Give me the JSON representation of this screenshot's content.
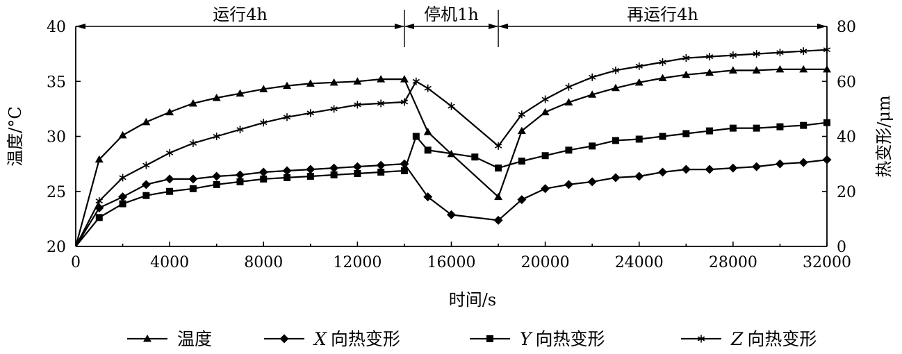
{
  "chart_data": {
    "type": "line",
    "title": "",
    "xlabel": "时间/s",
    "ylabel_left": "温度/°C",
    "ylabel_right": "热变形/μm",
    "xlim": [
      0,
      32000
    ],
    "ylim_left": [
      20,
      40
    ],
    "ylim_right": [
      0,
      80
    ],
    "x_ticks": [
      "0",
      "4000",
      "8000",
      "12000",
      "16000",
      "20000",
      "24000",
      "28000",
      "32000"
    ],
    "y_left_ticks": [
      "20",
      "25",
      "30",
      "35",
      "40"
    ],
    "y_right_ticks": [
      "0",
      "20",
      "40",
      "60",
      "80"
    ],
    "grid": false,
    "legend_position": "bottom",
    "phases": [
      {
        "label": "运行4h",
        "start": 0,
        "end": 14000
      },
      {
        "label": "停机1h",
        "start": 14000,
        "end": 18000
      },
      {
        "label": "再运行4h",
        "start": 18000,
        "end": 32000
      }
    ],
    "series": [
      {
        "name": "温度",
        "legend_prefix": "",
        "legend_suffix": "温度",
        "axis": "left",
        "marker": "triangle",
        "points": [
          [
            0,
            20
          ],
          [
            1000,
            27.9
          ],
          [
            2000,
            30.1
          ],
          [
            3000,
            31.3
          ],
          [
            4000,
            32.2
          ],
          [
            5000,
            33
          ],
          [
            6000,
            33.5
          ],
          [
            7000,
            33.9
          ],
          [
            8000,
            34.3
          ],
          [
            9000,
            34.6
          ],
          [
            10000,
            34.8
          ],
          [
            11000,
            34.9
          ],
          [
            12000,
            35
          ],
          [
            13000,
            35.2
          ],
          [
            14000,
            35.2
          ],
          [
            15000,
            30.4
          ],
          [
            16000,
            28.4
          ],
          [
            18000,
            24.5
          ],
          [
            19000,
            30.5
          ],
          [
            20000,
            32.2
          ],
          [
            21000,
            33.1
          ],
          [
            22000,
            33.8
          ],
          [
            23000,
            34.4
          ],
          [
            24000,
            34.9
          ],
          [
            25000,
            35.3
          ],
          [
            26000,
            35.6
          ],
          [
            27000,
            35.8
          ],
          [
            28000,
            36
          ],
          [
            29000,
            36
          ],
          [
            30000,
            36.1
          ],
          [
            31000,
            36.1
          ],
          [
            32000,
            36.1
          ]
        ]
      },
      {
        "name": "X向热变形",
        "legend_prefix": "X",
        "legend_suffix": "向热变形",
        "axis": "right",
        "marker": "diamond",
        "points": [
          [
            0,
            0
          ],
          [
            1000,
            14
          ],
          [
            2000,
            18
          ],
          [
            3000,
            22.5
          ],
          [
            4000,
            24.5
          ],
          [
            5000,
            24.5
          ],
          [
            6000,
            25.5
          ],
          [
            7000,
            26
          ],
          [
            8000,
            27
          ],
          [
            9000,
            27.5
          ],
          [
            10000,
            28
          ],
          [
            11000,
            28.5
          ],
          [
            12000,
            29
          ],
          [
            13000,
            29.5
          ],
          [
            14000,
            30
          ],
          [
            15000,
            18
          ],
          [
            16000,
            11.5
          ],
          [
            18000,
            9.5
          ],
          [
            19000,
            17
          ],
          [
            20000,
            21
          ],
          [
            21000,
            22.5
          ],
          [
            22000,
            23.5
          ],
          [
            23000,
            25
          ],
          [
            24000,
            25.5
          ],
          [
            25000,
            27
          ],
          [
            26000,
            28
          ],
          [
            27000,
            28
          ],
          [
            28000,
            28.5
          ],
          [
            29000,
            29
          ],
          [
            30000,
            30
          ],
          [
            31000,
            30.5
          ],
          [
            32000,
            31.5
          ]
        ]
      },
      {
        "name": "Y向热变形",
        "legend_prefix": "Y",
        "legend_suffix": "向热变形",
        "axis": "right",
        "marker": "square",
        "points": [
          [
            0,
            0
          ],
          [
            1000,
            10.5
          ],
          [
            2000,
            15.5
          ],
          [
            3000,
            18.5
          ],
          [
            4000,
            20
          ],
          [
            5000,
            21
          ],
          [
            6000,
            22.5
          ],
          [
            7000,
            23.5
          ],
          [
            8000,
            24.5
          ],
          [
            9000,
            25
          ],
          [
            10000,
            25.5
          ],
          [
            11000,
            26
          ],
          [
            12000,
            26.5
          ],
          [
            13000,
            27
          ],
          [
            14000,
            27.5
          ],
          [
            14500,
            40
          ],
          [
            15000,
            35
          ],
          [
            17000,
            32.5
          ],
          [
            18000,
            28.5
          ],
          [
            19000,
            31
          ],
          [
            20000,
            33
          ],
          [
            21000,
            35
          ],
          [
            22000,
            36.5
          ],
          [
            23000,
            38.5
          ],
          [
            24000,
            39
          ],
          [
            25000,
            40
          ],
          [
            26000,
            41
          ],
          [
            27000,
            42
          ],
          [
            28000,
            43
          ],
          [
            29000,
            43
          ],
          [
            30000,
            43.5
          ],
          [
            31000,
            44
          ],
          [
            32000,
            45
          ]
        ]
      },
      {
        "name": "Z向热变形",
        "legend_prefix": "Z",
        "legend_suffix": "向热变形",
        "axis": "right",
        "marker": "star",
        "points": [
          [
            0,
            0
          ],
          [
            1000,
            16.5
          ],
          [
            2000,
            25
          ],
          [
            3000,
            29.5
          ],
          [
            4000,
            34
          ],
          [
            5000,
            37.5
          ],
          [
            6000,
            40
          ],
          [
            7000,
            42.5
          ],
          [
            8000,
            45
          ],
          [
            9000,
            47
          ],
          [
            10000,
            48.5
          ],
          [
            11000,
            50
          ],
          [
            12000,
            51.5
          ],
          [
            13000,
            52
          ],
          [
            14000,
            52.5
          ],
          [
            14500,
            60
          ],
          [
            15000,
            57.5
          ],
          [
            16000,
            51
          ],
          [
            18000,
            36.5
          ],
          [
            19000,
            48
          ],
          [
            20000,
            53.5
          ],
          [
            21000,
            58
          ],
          [
            22000,
            61.5
          ],
          [
            23000,
            64
          ],
          [
            24000,
            65.5
          ],
          [
            25000,
            67
          ],
          [
            26000,
            68.5
          ],
          [
            27000,
            69
          ],
          [
            28000,
            69.5
          ],
          [
            29000,
            70
          ],
          [
            30000,
            70.5
          ],
          [
            31000,
            71
          ],
          [
            32000,
            71.5
          ]
        ]
      }
    ]
  }
}
